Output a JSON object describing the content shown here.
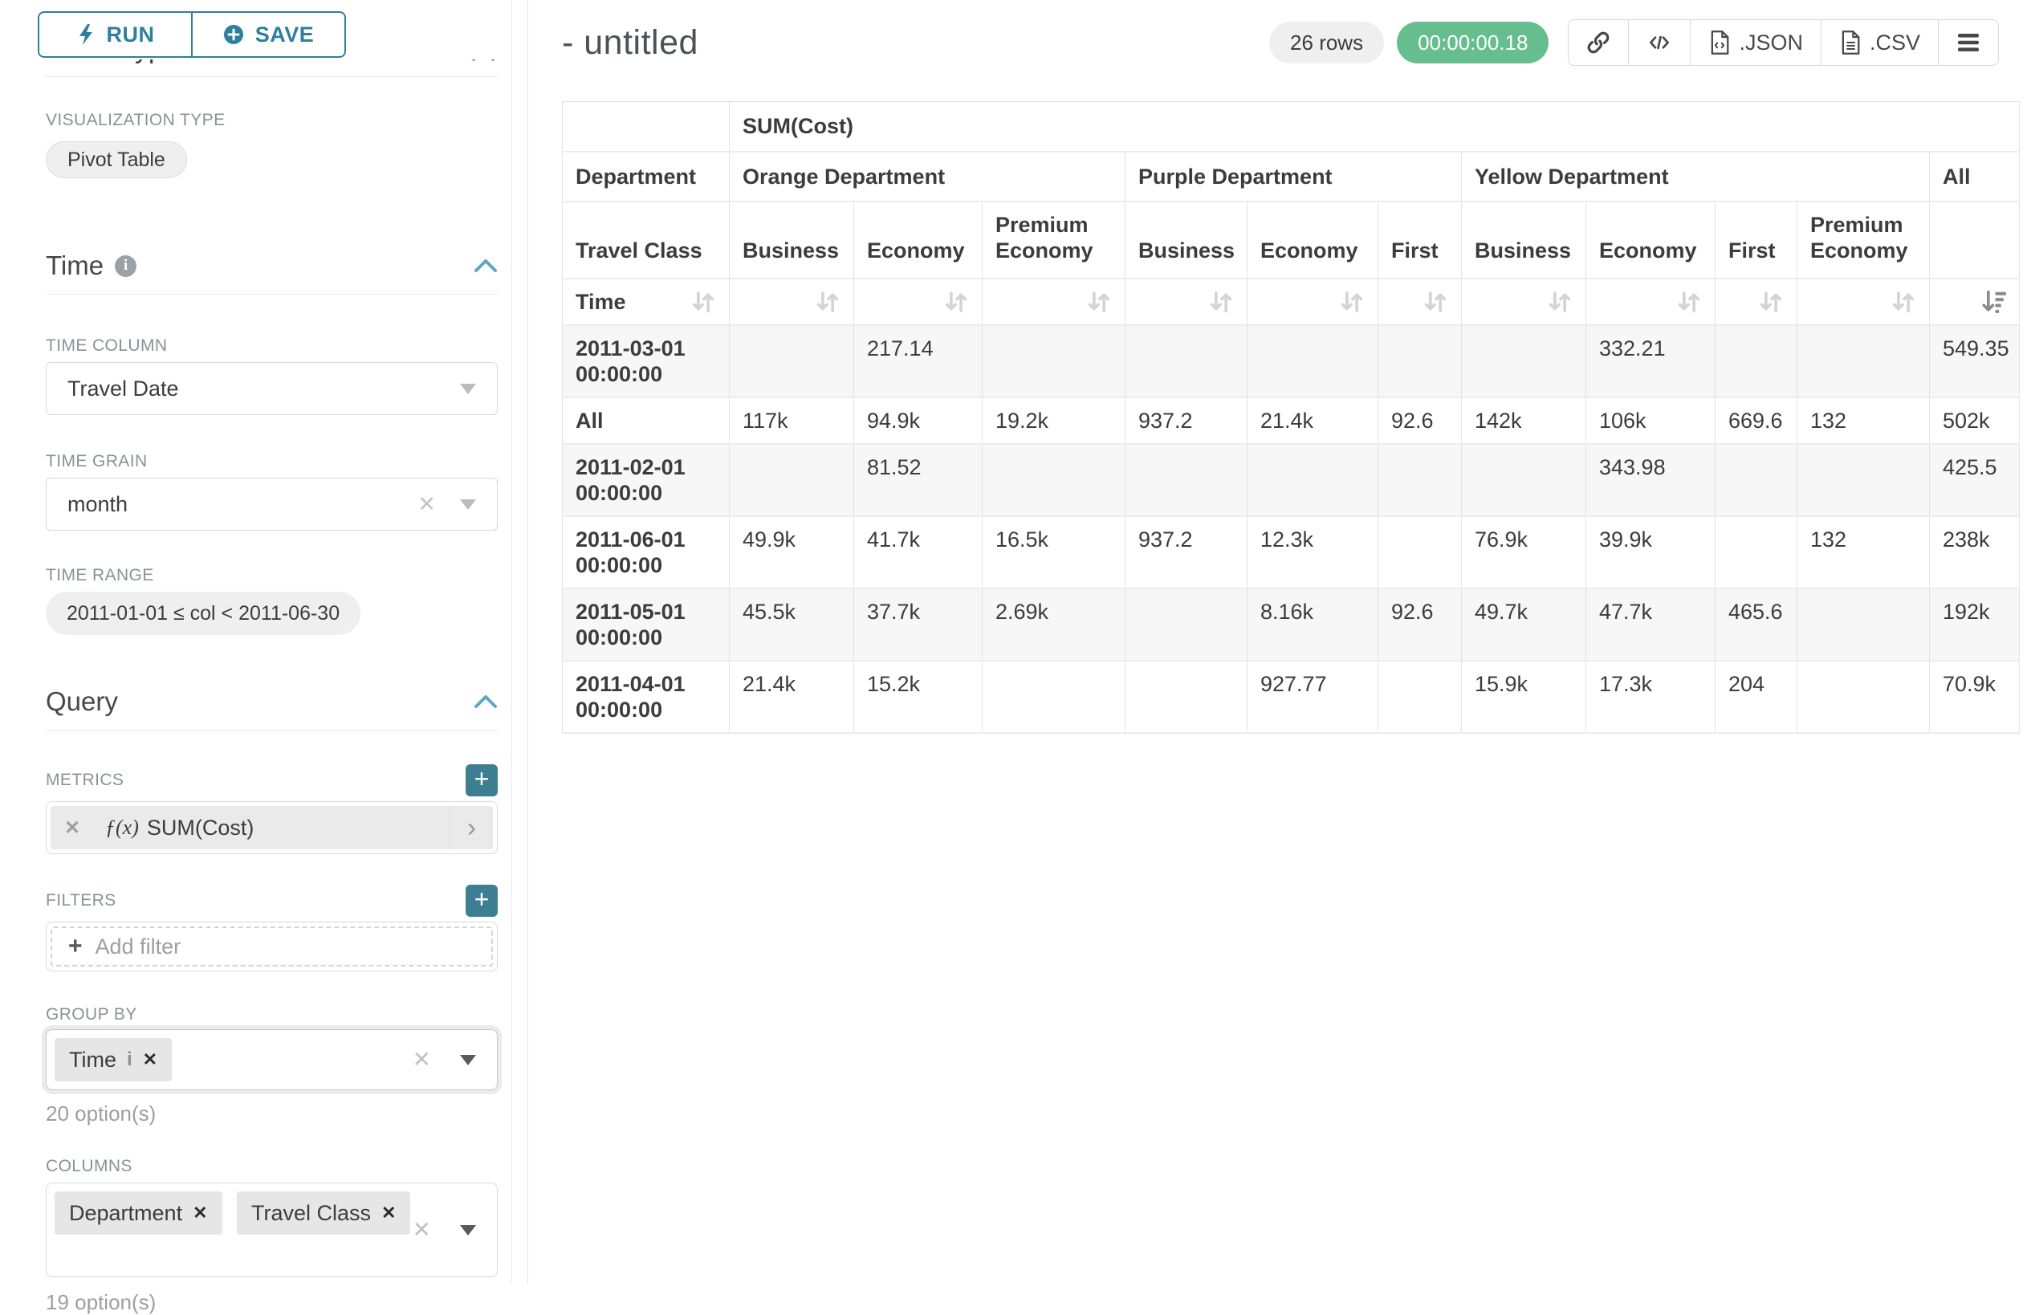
{
  "toolbar": {
    "run": "RUN",
    "save": "SAVE"
  },
  "panel": {
    "chart_type_heading": "Chart Type",
    "viz_label": "VISUALIZATION TYPE",
    "viz_value": "Pivot Table",
    "time_heading": "Time",
    "time_column_label": "TIME COLUMN",
    "time_column_value": "Travel Date",
    "time_grain_label": "TIME GRAIN",
    "time_grain_value": "month",
    "time_range_label": "TIME RANGE",
    "time_range_value": "2011-01-01 ≤ col < 2011-06-30",
    "query_heading": "Query",
    "metrics_label": "METRICS",
    "metric_fx": "ƒ(x)",
    "metric_value": "SUM(Cost)",
    "filters_label": "FILTERS",
    "add_filter_placeholder": "Add filter",
    "group_by_label": "GROUP BY",
    "group_by_chip": "Time",
    "group_by_options": "20 option(s)",
    "columns_label": "COLUMNS",
    "columns_chips": [
      "Department",
      "Travel Class"
    ],
    "columns_options": "19 option(s)"
  },
  "header": {
    "title": "- untitled",
    "rows_badge": "26 rows",
    "timer_badge": "00:00:00.18",
    "json_label": ".JSON",
    "csv_label": ".CSV"
  },
  "icons": {
    "run": "lightning-icon",
    "save": "plus-circle-icon",
    "share": "link-icon",
    "embed": "code-icon",
    "export_json": "file-code-icon",
    "export_csv": "file-text-icon",
    "menu": "hamburger-icon",
    "sort": "sort-both-icon",
    "sort_active": "sort-desc-icon"
  },
  "colors": {
    "accent_teal": "#2e7e9e",
    "plus_button_teal": "#3d7e93",
    "success_green": "#66be8e",
    "chevron_blue": "#5ba8c7",
    "zebra_gray": "#f7f7f7"
  },
  "table": {
    "metric_header": "SUM(Cost)",
    "dept_row_label": "Department",
    "class_row_label": "Travel Class",
    "time_row_label": "Time",
    "groups": [
      {
        "label": "Orange Department",
        "cols": [
          "Business",
          "Economy",
          "Premium Economy"
        ]
      },
      {
        "label": "Purple Department",
        "cols": [
          "Business",
          "Economy",
          "First"
        ]
      },
      {
        "label": "Yellow Department",
        "cols": [
          "Business",
          "Economy",
          "First",
          "Premium Economy"
        ]
      },
      {
        "label": "All",
        "cols": [
          ""
        ]
      }
    ],
    "sorted_desc_col": 10,
    "rows": [
      {
        "label": "2011-03-01 00:00:00",
        "values": [
          "",
          "217.14",
          "",
          "",
          "",
          "",
          "",
          "332.21",
          "",
          "",
          "549.35"
        ]
      },
      {
        "label": "All",
        "values": [
          "117k",
          "94.9k",
          "19.2k",
          "937.2",
          "21.4k",
          "92.6",
          "142k",
          "106k",
          "669.6",
          "132",
          "502k"
        ]
      },
      {
        "label": "2011-02-01 00:00:00",
        "values": [
          "",
          "81.52",
          "",
          "",
          "",
          "",
          "",
          "343.98",
          "",
          "",
          "425.5"
        ]
      },
      {
        "label": "2011-06-01 00:00:00",
        "values": [
          "49.9k",
          "41.7k",
          "16.5k",
          "937.2",
          "12.3k",
          "",
          "76.9k",
          "39.9k",
          "",
          "132",
          "238k"
        ]
      },
      {
        "label": "2011-05-01 00:00:00",
        "values": [
          "45.5k",
          "37.7k",
          "2.69k",
          "",
          "8.16k",
          "92.6",
          "49.7k",
          "47.7k",
          "465.6",
          "",
          "192k"
        ]
      },
      {
        "label": "2011-04-01 00:00:00",
        "values": [
          "21.4k",
          "15.2k",
          "",
          "",
          "927.77",
          "",
          "15.9k",
          "17.3k",
          "204",
          "",
          "70.9k"
        ]
      }
    ]
  }
}
